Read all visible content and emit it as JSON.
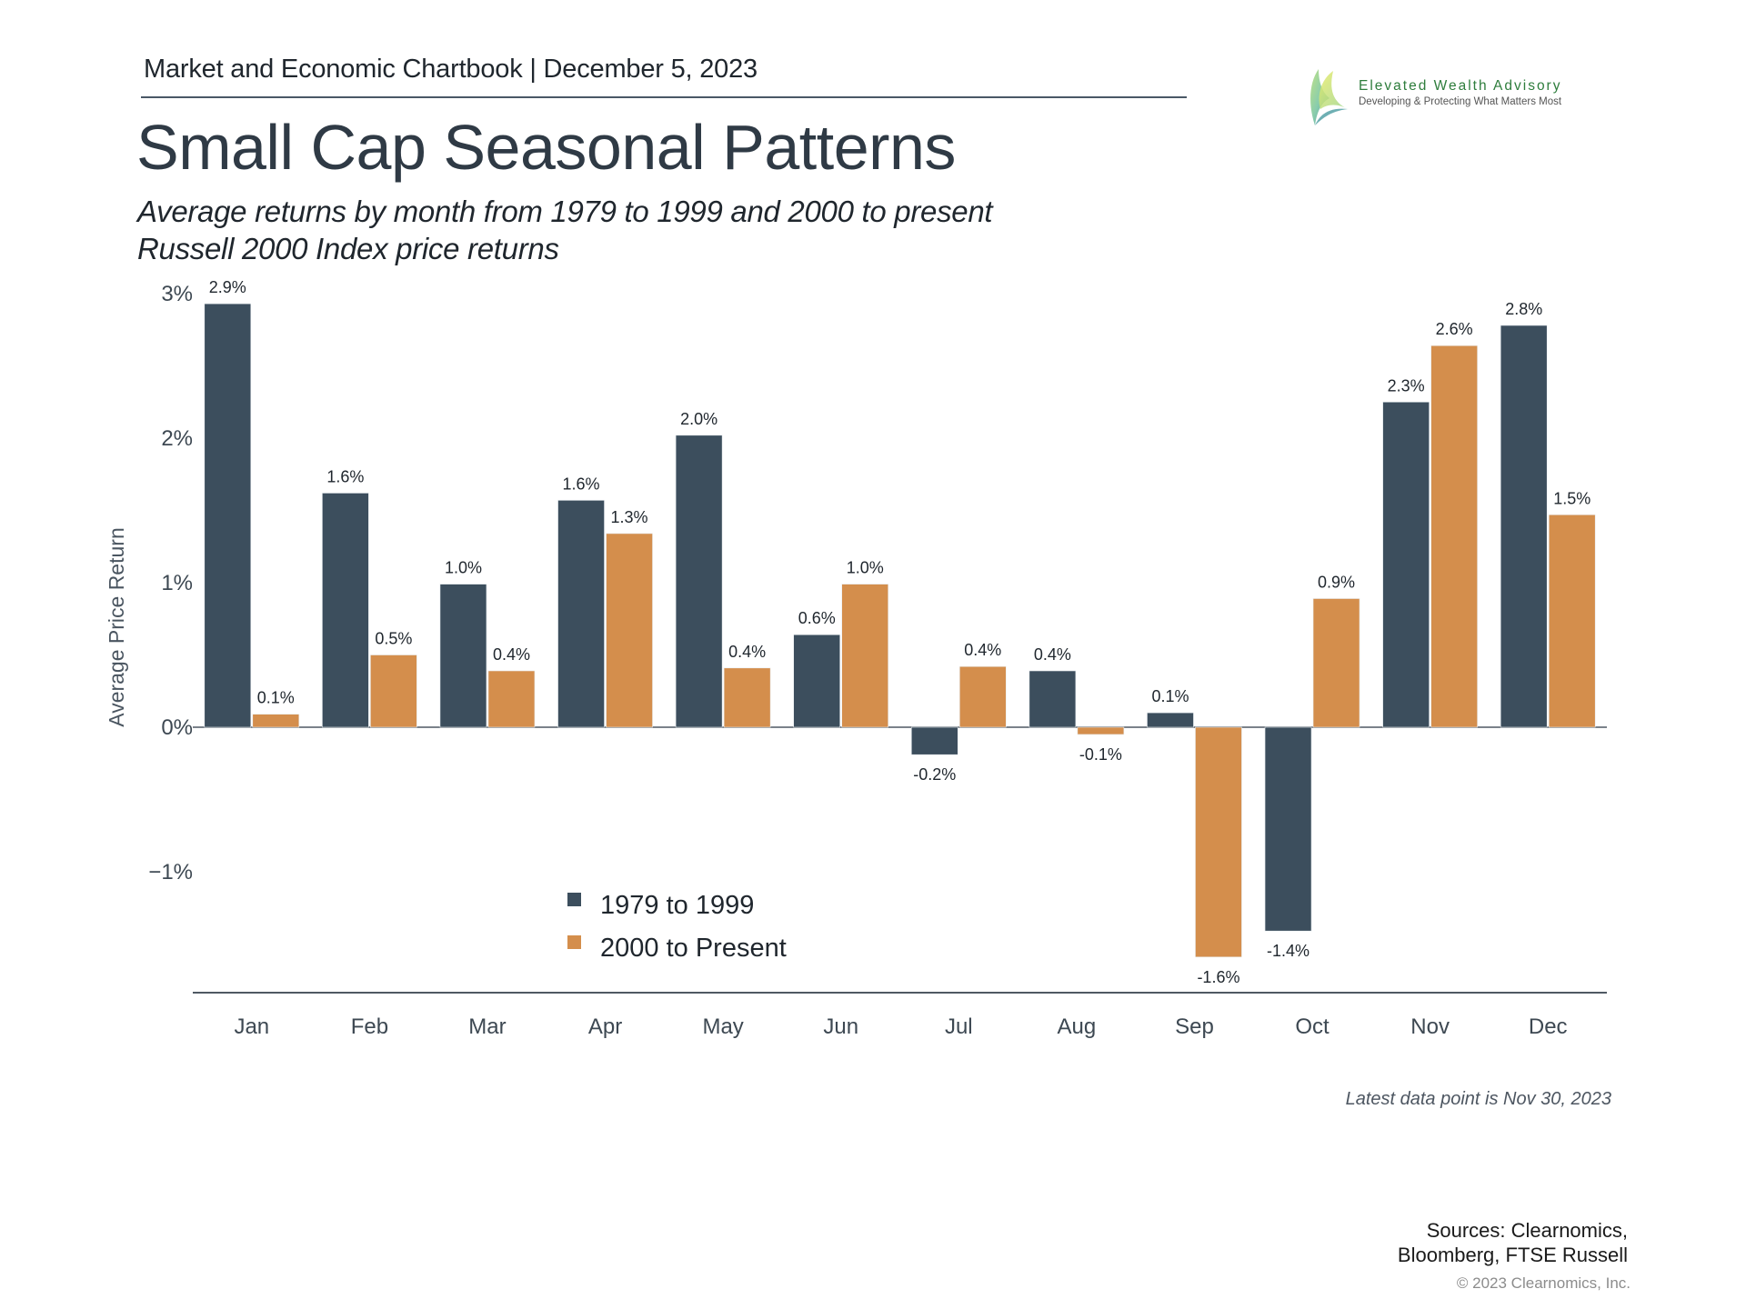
{
  "header": {
    "chartbook_line": "Market and Economic Chartbook | December 5, 2023"
  },
  "logo": {
    "icon": "sail-leaf-logo-icon",
    "name": "Elevated Wealth Advisory",
    "tagline": "Developing & Protecting What Matters Most"
  },
  "title": "Small Cap Seasonal Patterns",
  "subtitle_lines": [
    "Average returns by month from 1979 to 1999 and 2000 to present",
    "Russell 2000 Index price returns"
  ],
  "footnote": "Latest data point is Nov 30, 2023",
  "sources_lines": [
    "Sources: Clearnomics,",
    "Bloomberg, FTSE Russell"
  ],
  "copyright": "© 2023 Clearnomics, Inc.",
  "colors": {
    "series_1979_1999": "#3c4e5d",
    "series_2000_present": "#d48e4c",
    "axis": "#4f5963",
    "text": "#333d47"
  },
  "chart_data": {
    "type": "bar",
    "title": "Small Cap Seasonal Patterns",
    "xlabel": "",
    "ylabel": "Average Price Return",
    "ylim": [
      -1.85,
      3.0
    ],
    "yticks": [
      3,
      2,
      1,
      0,
      -1
    ],
    "ytick_labels": [
      "3%",
      "2%",
      "1%",
      "0%",
      "−1%"
    ],
    "grid": false,
    "legend_position": "bottom-left-center",
    "categories": [
      "Jan",
      "Feb",
      "Mar",
      "Apr",
      "May",
      "Jun",
      "Jul",
      "Aug",
      "Sep",
      "Oct",
      "Nov",
      "Dec"
    ],
    "series": [
      {
        "name": "1979 to 1999",
        "values": [
          2.93,
          1.62,
          0.99,
          1.57,
          2.02,
          0.64,
          -0.19,
          0.39,
          0.1,
          -1.41,
          2.25,
          2.78
        ],
        "labels": [
          "2.9%",
          "1.6%",
          "1.0%",
          "1.6%",
          "2.0%",
          "0.6%",
          "-0.2%",
          "0.4%",
          "0.1%",
          "-1.4%",
          "2.3%",
          "2.8%"
        ]
      },
      {
        "name": "2000 to Present",
        "values": [
          0.09,
          0.5,
          0.39,
          1.34,
          0.41,
          0.99,
          0.42,
          -0.05,
          -1.59,
          0.89,
          2.64,
          1.47
        ],
        "labels": [
          "0.1%",
          "0.5%",
          "0.4%",
          "1.3%",
          "0.4%",
          "1.0%",
          "0.4%",
          "-0.1%",
          "-1.6%",
          "0.9%",
          "2.6%",
          "1.5%"
        ]
      }
    ]
  }
}
